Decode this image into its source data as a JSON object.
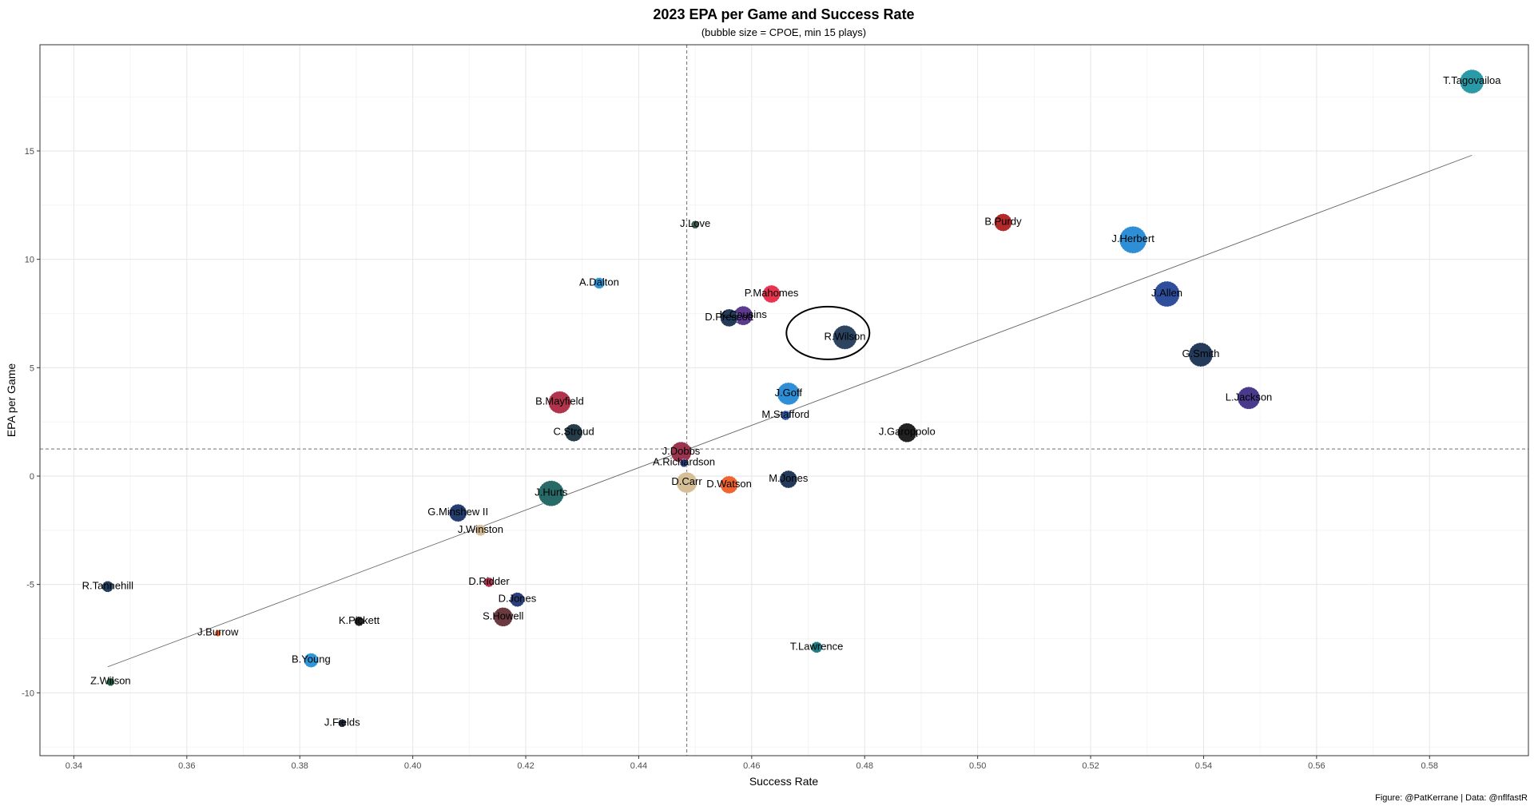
{
  "chart_data": {
    "type": "scatter",
    "title": "2023 EPA per Game and Success Rate",
    "subtitle": "(bubble size = CPOE, min 15 plays)",
    "xlabel": "Success Rate",
    "ylabel": "EPA per Game",
    "caption": "Figure: @PatKerrane | Data: @nflfastR",
    "xlim": [
      0.334,
      0.5975
    ],
    "ylim": [
      -12.9,
      19.9
    ],
    "xticks": [
      0.34,
      0.36,
      0.38,
      0.4,
      0.42,
      0.44,
      0.46,
      0.48,
      0.5,
      0.52,
      0.54,
      0.56,
      0.58
    ],
    "xtick_labels": [
      "0.34",
      "0.36",
      "0.38",
      "0.40",
      "0.42",
      "0.44",
      "0.46",
      "0.48",
      "0.50",
      "0.52",
      "0.54",
      "0.56",
      "0.58"
    ],
    "yticks": [
      -10,
      -5,
      0,
      5,
      10,
      15
    ],
    "ytick_labels": [
      "-10",
      "-5",
      "0",
      "5",
      "10",
      "15"
    ],
    "grid": true,
    "reference_lines": {
      "x_mean": 0.4485,
      "y_mean": 1.25
    },
    "trend_line": {
      "x": [
        0.346,
        0.5875
      ],
      "y": [
        -8.8,
        14.8
      ]
    },
    "highlight": {
      "x": 0.4735,
      "y": 6.6,
      "label": "R.Wilson"
    },
    "points": [
      {
        "label": "T.Tagovailoa",
        "x": 0.5875,
        "y": 18.2,
        "size": 15,
        "color": "#2a9aa6"
      },
      {
        "label": "B.Purdy",
        "x": 0.5045,
        "y": 11.7,
        "size": 11,
        "color": "#b32a2a"
      },
      {
        "label": "J.Herbert",
        "x": 0.5275,
        "y": 10.9,
        "size": 17,
        "color": "#2e8fd6"
      },
      {
        "label": "J.Allen",
        "x": 0.5335,
        "y": 8.4,
        "size": 16,
        "color": "#2f4f9c"
      },
      {
        "label": "G.Smith",
        "x": 0.5395,
        "y": 5.6,
        "size": 15,
        "color": "#243b5c"
      },
      {
        "label": "L.Jackson",
        "x": 0.548,
        "y": 3.6,
        "size": 14,
        "color": "#4a3a8c"
      },
      {
        "label": "J.Love",
        "x": 0.45,
        "y": 11.6,
        "size": 5,
        "color": "#3d5a4f"
      },
      {
        "label": "A.Dalton",
        "x": 0.433,
        "y": 8.9,
        "size": 7,
        "color": "#2f97d8"
      },
      {
        "label": "P.Mahomes",
        "x": 0.4635,
        "y": 8.4,
        "size": 11,
        "color": "#e8344f"
      },
      {
        "label": "K.Cousins",
        "x": 0.4585,
        "y": 7.4,
        "size": 12,
        "color": "#5b3a8f"
      },
      {
        "label": "D.Prescott",
        "x": 0.456,
        "y": 7.3,
        "size": 11,
        "color": "#233a5a"
      },
      {
        "label": "R.Wilson",
        "x": 0.4765,
        "y": 6.4,
        "size": 15,
        "color": "#2c4460"
      },
      {
        "label": "J.Goff",
        "x": 0.4665,
        "y": 3.8,
        "size": 14,
        "color": "#2e8fd6"
      },
      {
        "label": "M.Stafford",
        "x": 0.466,
        "y": 2.8,
        "size": 6,
        "color": "#2f5aa8"
      },
      {
        "label": "J.Garoppolo",
        "x": 0.4875,
        "y": 2.0,
        "size": 12,
        "color": "#222222"
      },
      {
        "label": "B.Mayfield",
        "x": 0.426,
        "y": 3.4,
        "size": 14,
        "color": "#b0344c"
      },
      {
        "label": "C.Stroud",
        "x": 0.4285,
        "y": 2.0,
        "size": 11,
        "color": "#263d4a"
      },
      {
        "label": "J.Dobbs",
        "x": 0.4475,
        "y": 1.1,
        "size": 13,
        "color": "#9c3450"
      },
      {
        "label": "A.Richardson",
        "x": 0.448,
        "y": 0.6,
        "size": 5,
        "color": "#2a3f7a"
      },
      {
        "label": "D.Carr",
        "x": 0.4485,
        "y": -0.3,
        "size": 13,
        "color": "#d6bf96"
      },
      {
        "label": "D.Watson",
        "x": 0.456,
        "y": -0.4,
        "size": 11,
        "color": "#f0642f"
      },
      {
        "label": "M.Jones",
        "x": 0.4665,
        "y": -0.15,
        "size": 11,
        "color": "#233a5a"
      },
      {
        "label": "J.Hurts",
        "x": 0.4245,
        "y": -0.8,
        "size": 16,
        "color": "#286a68"
      },
      {
        "label": "G.Minshew II",
        "x": 0.408,
        "y": -1.7,
        "size": 11,
        "color": "#243f6e"
      },
      {
        "label": "J.Winston",
        "x": 0.412,
        "y": -2.5,
        "size": 7,
        "color": "#d6bf96"
      },
      {
        "label": "D.Ridder",
        "x": 0.4135,
        "y": -4.9,
        "size": 6,
        "color": "#b0344c"
      },
      {
        "label": "D.Jones",
        "x": 0.4185,
        "y": -5.7,
        "size": 9,
        "color": "#2a3f7a"
      },
      {
        "label": "S.Howell",
        "x": 0.416,
        "y": -6.5,
        "size": 12,
        "color": "#6a3a40"
      },
      {
        "label": "R.Tannehill",
        "x": 0.346,
        "y": -5.1,
        "size": 7,
        "color": "#243f5c"
      },
      {
        "label": "J.Burrow",
        "x": 0.3655,
        "y": -7.25,
        "size": 4,
        "color": "#f0642f"
      },
      {
        "label": "K.Pickett",
        "x": 0.3905,
        "y": -6.7,
        "size": 6,
        "color": "#222222"
      },
      {
        "label": "B.Young",
        "x": 0.382,
        "y": -8.5,
        "size": 9,
        "color": "#2f97d8"
      },
      {
        "label": "Z.Wilson",
        "x": 0.3465,
        "y": -9.5,
        "size": 5,
        "color": "#1f5a42"
      },
      {
        "label": "J.Fields",
        "x": 0.3875,
        "y": -11.4,
        "size": 5,
        "color": "#262e3d"
      },
      {
        "label": "T.Lawrence",
        "x": 0.4715,
        "y": -7.9,
        "size": 7,
        "color": "#1f7f86"
      }
    ]
  }
}
